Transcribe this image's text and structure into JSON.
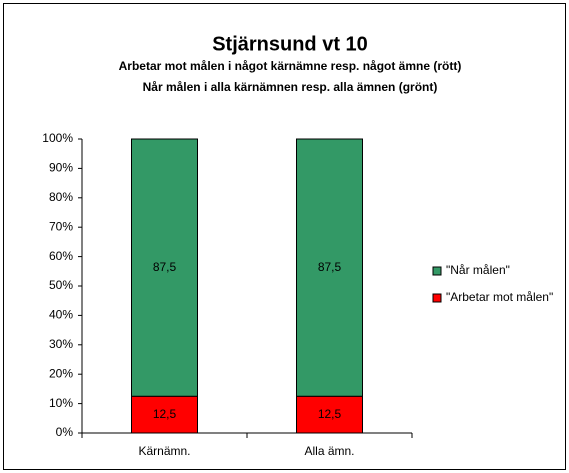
{
  "chart_data": {
    "type": "stacked_bar",
    "title": "Stjärnsund vt 10",
    "subtitle": [
      "Arbetar mot målen i något kärnämne resp. något ämne (rött)",
      "Når målen i alla kärnämnen resp. alla ämnen (grönt)"
    ],
    "categories": [
      "Kärnämn.",
      "Alla ämn."
    ],
    "series": [
      {
        "name": "\"Arbetar mot målen\"",
        "color": "#ff0000",
        "values": [
          12.5,
          12.5
        ],
        "value_labels": [
          "12,5",
          "12,5"
        ]
      },
      {
        "name": "\"Når målen\"",
        "color": "#339966",
        "values": [
          87.5,
          87.5
        ],
        "value_labels": [
          "87,5",
          "87,5"
        ]
      }
    ],
    "ylim": [
      0,
      100
    ],
    "yticks": [
      {
        "value": 0,
        "label": "0%"
      },
      {
        "value": 10,
        "label": "10%"
      },
      {
        "value": 20,
        "label": "20%"
      },
      {
        "value": 30,
        "label": "30%"
      },
      {
        "value": 40,
        "label": "40%"
      },
      {
        "value": 50,
        "label": "50%"
      },
      {
        "value": 60,
        "label": "60%"
      },
      {
        "value": 70,
        "label": "70%"
      },
      {
        "value": 80,
        "label": "80%"
      },
      {
        "value": 90,
        "label": "90%"
      },
      {
        "value": 100,
        "label": "100%"
      }
    ],
    "grid": false,
    "legend": "right"
  }
}
